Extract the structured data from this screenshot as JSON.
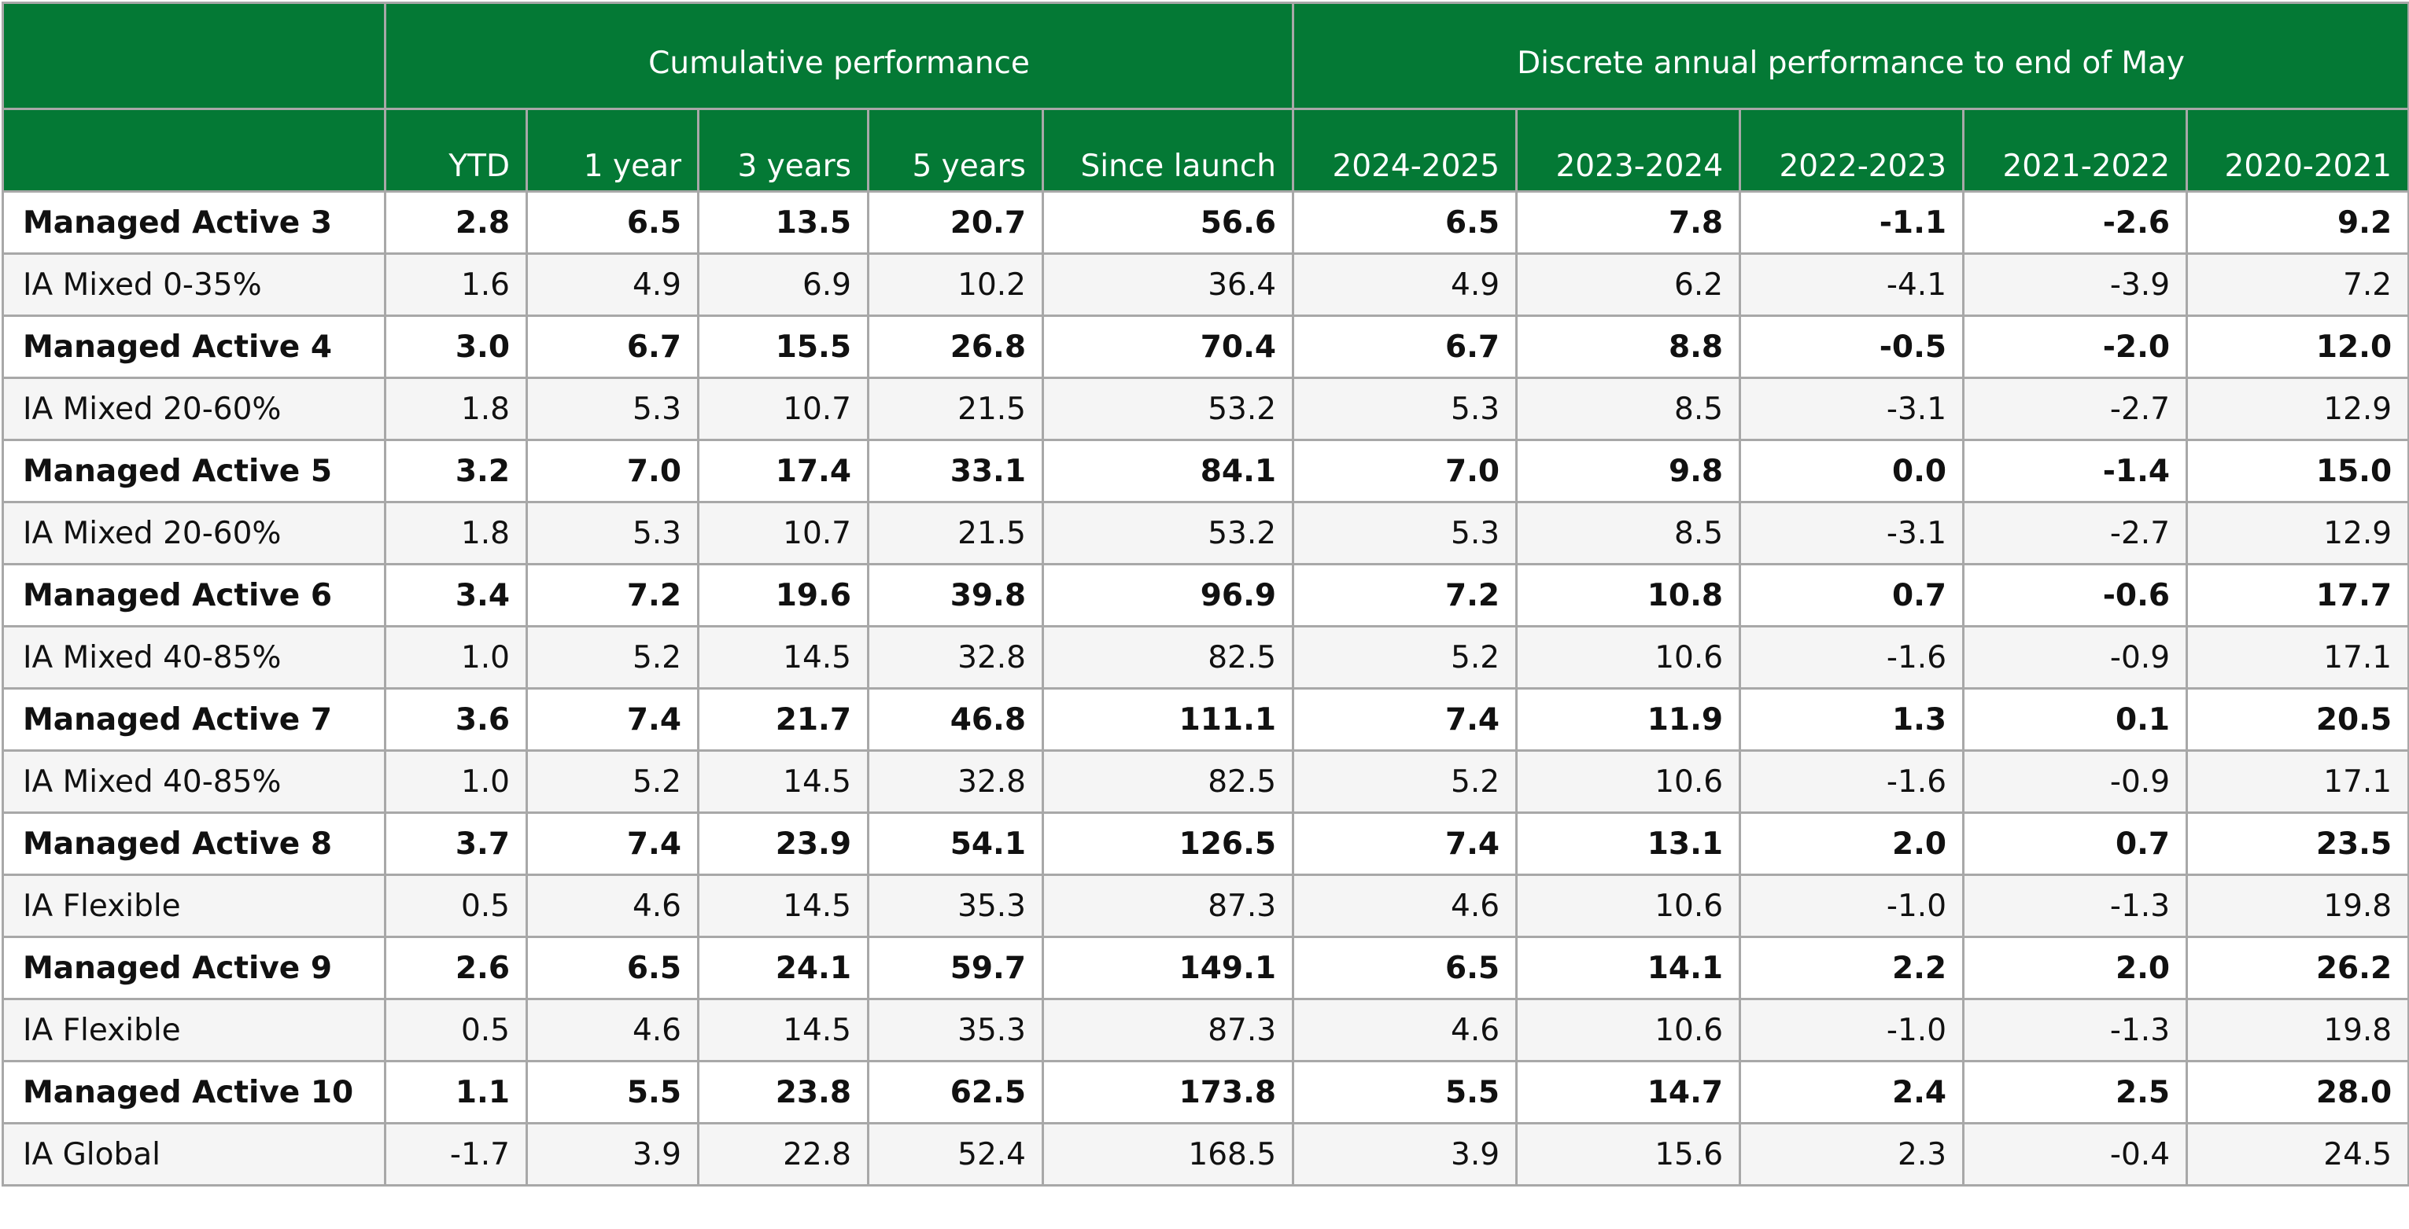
{
  "chart_data": {
    "type": "table",
    "header_groups": [
      {
        "label": "",
        "span": 1
      },
      {
        "label": "Cumulative performance",
        "span": 5
      },
      {
        "label": "Discrete annual performance to end of May",
        "span": 5
      }
    ],
    "columns": [
      "YTD",
      "1 year",
      "3 years",
      "5 years",
      "Since launch",
      "2024-2025",
      "2023-2024",
      "2022-2023",
      "2021-2022",
      "2020-2021"
    ],
    "rows": [
      {
        "name": "Managed Active 3",
        "kind": "fund",
        "values": [
          "2.8",
          "6.5",
          "13.5",
          "20.7",
          "56.6",
          "6.5",
          "7.8",
          "-1.1",
          "-2.6",
          "9.2"
        ]
      },
      {
        "name": "IA Mixed 0-35%",
        "kind": "sector",
        "values": [
          "1.6",
          "4.9",
          "6.9",
          "10.2",
          "36.4",
          "4.9",
          "6.2",
          "-4.1",
          "-3.9",
          "7.2"
        ]
      },
      {
        "name": "Managed Active 4",
        "kind": "fund",
        "values": [
          "3.0",
          "6.7",
          "15.5",
          "26.8",
          "70.4",
          "6.7",
          "8.8",
          "-0.5",
          "-2.0",
          "12.0"
        ]
      },
      {
        "name": "IA Mixed 20-60%",
        "kind": "sector",
        "values": [
          "1.8",
          "5.3",
          "10.7",
          "21.5",
          "53.2",
          "5.3",
          "8.5",
          "-3.1",
          "-2.7",
          "12.9"
        ]
      },
      {
        "name": "Managed Active 5",
        "kind": "fund",
        "values": [
          "3.2",
          "7.0",
          "17.4",
          "33.1",
          "84.1",
          "7.0",
          "9.8",
          "0.0",
          "-1.4",
          "15.0"
        ]
      },
      {
        "name": "IA Mixed 20-60%",
        "kind": "sector",
        "values": [
          "1.8",
          "5.3",
          "10.7",
          "21.5",
          "53.2",
          "5.3",
          "8.5",
          "-3.1",
          "-2.7",
          "12.9"
        ]
      },
      {
        "name": "Managed Active 6",
        "kind": "fund",
        "values": [
          "3.4",
          "7.2",
          "19.6",
          "39.8",
          "96.9",
          "7.2",
          "10.8",
          "0.7",
          "-0.6",
          "17.7"
        ]
      },
      {
        "name": "IA Mixed 40-85%",
        "kind": "sector",
        "values": [
          "1.0",
          "5.2",
          "14.5",
          "32.8",
          "82.5",
          "5.2",
          "10.6",
          "-1.6",
          "-0.9",
          "17.1"
        ]
      },
      {
        "name": "Managed Active 7",
        "kind": "fund",
        "values": [
          "3.6",
          "7.4",
          "21.7",
          "46.8",
          "111.1",
          "7.4",
          "11.9",
          "1.3",
          "0.1",
          "20.5"
        ]
      },
      {
        "name": "IA Mixed 40-85%",
        "kind": "sector",
        "values": [
          "1.0",
          "5.2",
          "14.5",
          "32.8",
          "82.5",
          "5.2",
          "10.6",
          "-1.6",
          "-0.9",
          "17.1"
        ]
      },
      {
        "name": "Managed Active 8",
        "kind": "fund",
        "values": [
          "3.7",
          "7.4",
          "23.9",
          "54.1",
          "126.5",
          "7.4",
          "13.1",
          "2.0",
          "0.7",
          "23.5"
        ]
      },
      {
        "name": "IA Flexible",
        "kind": "sector",
        "values": [
          "0.5",
          "4.6",
          "14.5",
          "35.3",
          "87.3",
          "4.6",
          "10.6",
          "-1.0",
          "-1.3",
          "19.8"
        ]
      },
      {
        "name": "Managed Active 9",
        "kind": "fund",
        "values": [
          "2.6",
          "6.5",
          "24.1",
          "59.7",
          "149.1",
          "6.5",
          "14.1",
          "2.2",
          "2.0",
          "26.2"
        ]
      },
      {
        "name": "IA Flexible",
        "kind": "sector",
        "values": [
          "0.5",
          "4.6",
          "14.5",
          "35.3",
          "87.3",
          "4.6",
          "10.6",
          "-1.0",
          "-1.3",
          "19.8"
        ]
      },
      {
        "name": "Managed Active 10",
        "kind": "fund",
        "values": [
          "1.1",
          "5.5",
          "23.8",
          "62.5",
          "173.8",
          "5.5",
          "14.7",
          "2.4",
          "2.5",
          "28.0"
        ]
      },
      {
        "name": "IA Global",
        "kind": "sector",
        "values": [
          "-1.7",
          "3.9",
          "22.8",
          "52.4",
          "168.5",
          "3.9",
          "15.6",
          "2.3",
          "-0.4",
          "24.5"
        ]
      }
    ],
    "colors": {
      "header_bg": "#047935",
      "header_text": "#ffffff",
      "fund_row_bg": "#ffffff",
      "sector_row_bg": "#f5f5f5",
      "border": "#a8a8a8"
    }
  }
}
